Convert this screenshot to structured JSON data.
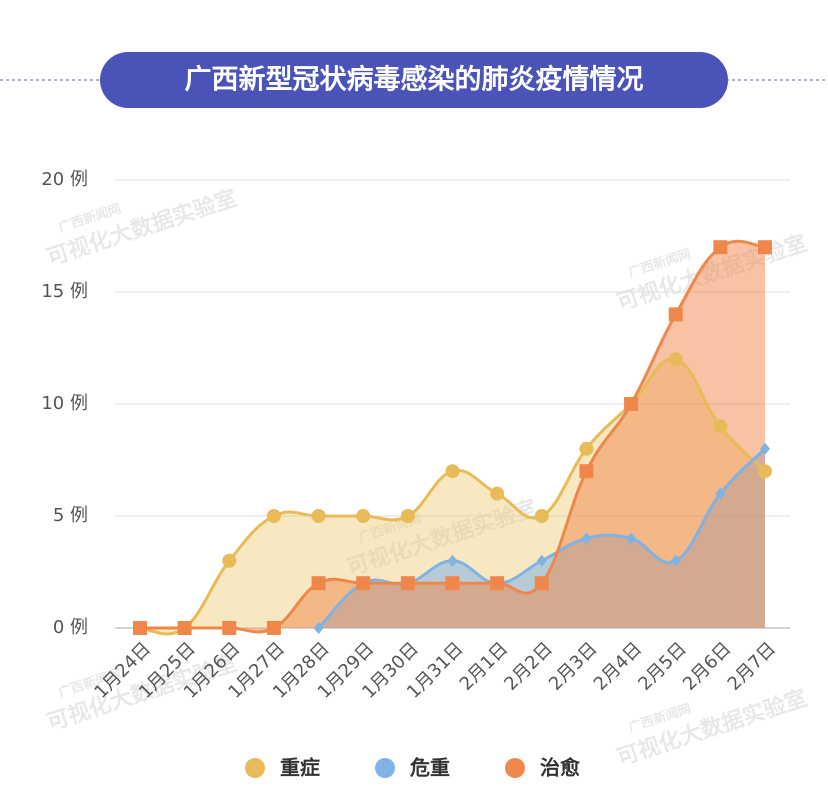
{
  "chart_data": {
    "type": "line-area",
    "title": "广西新型冠状病毒感染的肺炎疫情情况",
    "watermark": [
      "广西新闻网",
      "可视化大数据实验室"
    ],
    "categories": [
      "1月24日",
      "1月25日",
      "1月26日",
      "1月27日",
      "1月28日",
      "1月29日",
      "1月30日",
      "1月31日",
      "2月1日",
      "2月2日",
      "2月3日",
      "2月4日",
      "2月5日",
      "2月6日",
      "2月7日"
    ],
    "series": [
      {
        "name": "重症",
        "color": "#e8bb58",
        "marker": "circle",
        "values": [
          0,
          0,
          3,
          5,
          5,
          5,
          5,
          7,
          6,
          5,
          8,
          10,
          12,
          9,
          7
        ]
      },
      {
        "name": "危重",
        "color": "#7fb2e5",
        "marker": "diamond",
        "values": [
          null,
          null,
          null,
          null,
          0,
          2,
          2,
          3,
          2,
          3,
          4,
          4,
          3,
          6,
          8
        ]
      },
      {
        "name": "治愈",
        "color": "#f0874a",
        "marker": "square",
        "values": [
          0,
          0,
          0,
          0,
          2,
          2,
          2,
          2,
          2,
          2,
          7,
          10,
          14,
          17,
          17
        ]
      }
    ],
    "ylim": [
      0,
      20
    ],
    "yticks": [
      {
        "value": 0,
        "label": "0 例"
      },
      {
        "value": 5,
        "label": "5 例"
      },
      {
        "value": 10,
        "label": "10 例"
      },
      {
        "value": 15,
        "label": "15 例"
      },
      {
        "value": 20,
        "label": "20 例"
      }
    ],
    "grid": true
  }
}
